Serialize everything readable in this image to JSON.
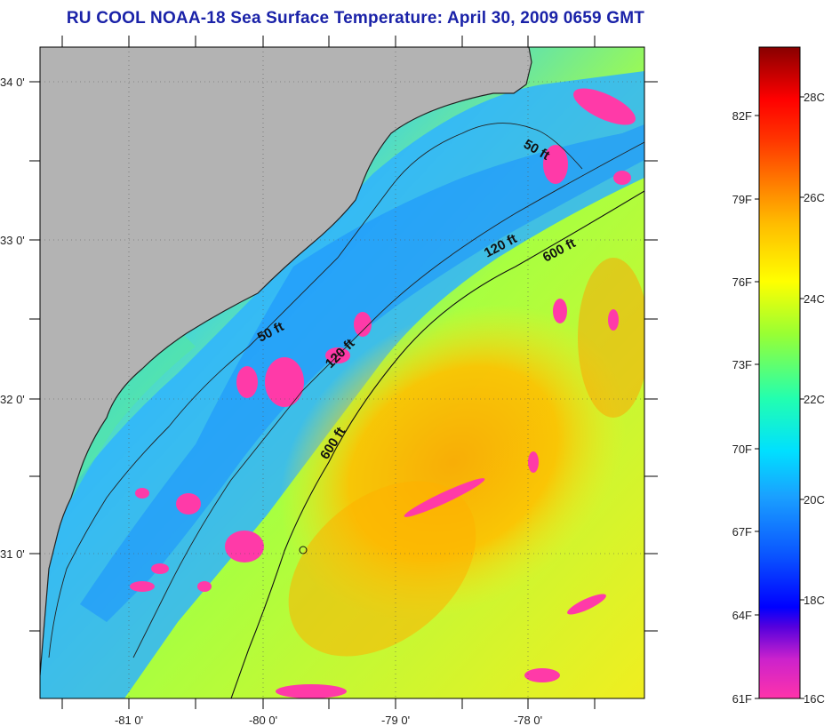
{
  "title": "RU COOL  NOAA-18  Sea Surface Temperature:  April 30, 2009 0659 GMT",
  "map": {
    "longitude_ticks": [
      "-81 0'",
      "-80 0'",
      "-79 0'",
      "-78 0'"
    ],
    "latitude_ticks": [
      "34 0'",
      "33 0'",
      "32 0'",
      "31 0'"
    ],
    "land_color": "#b3b3b3",
    "contour_labels": [
      {
        "text": "50 ft"
      },
      {
        "text": "50 ft"
      },
      {
        "text": "120 ft"
      },
      {
        "text": "120 ft"
      },
      {
        "text": "600 ft"
      },
      {
        "text": "600 ft"
      }
    ]
  },
  "colorbar": {
    "left_labels": [
      "82F",
      "79F",
      "76F",
      "73F",
      "70F",
      "67F",
      "64F",
      "61F"
    ],
    "right_labels": [
      "28C",
      "26C",
      "24C",
      "22C",
      "20C",
      "18C",
      "16C"
    ],
    "colors": {
      "warm_dark": "#8b0000",
      "red": "#ff1a00",
      "orange": "#ff8800",
      "yellow": "#ffff00",
      "green": "#44ff66",
      "cyan": "#00ffff",
      "blue": "#1a6aff",
      "deep_blue": "#0000ff",
      "purple": "#8800cc",
      "pink": "#ff33aa"
    }
  }
}
